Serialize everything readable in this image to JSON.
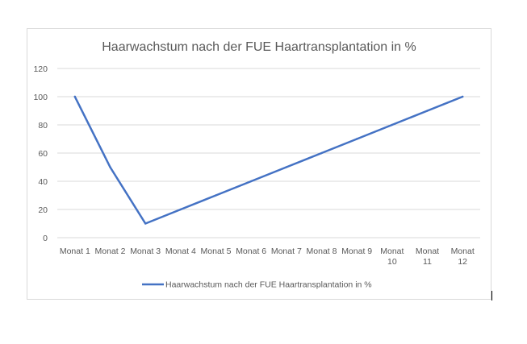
{
  "chart_data": {
    "type": "line",
    "title": "Haarwachstum nach der FUE Haartransplantation in %",
    "xlabel": "",
    "ylabel": "",
    "categories": [
      "Monat 1",
      "Monat 2",
      "Monat 3",
      "Monat 4",
      "Monat 5",
      "Monat 6",
      "Monat 7",
      "Monat 8",
      "Monat 9",
      "Monat 10",
      "Monat 11",
      "Monat 12"
    ],
    "series": [
      {
        "name": "Haarwachstum nach der FUE Haartransplantation in %",
        "values": [
          100,
          50,
          10,
          20,
          30,
          40,
          50,
          60,
          70,
          80,
          90,
          100
        ],
        "color": "#4472c4"
      }
    ],
    "ylim": [
      0,
      120
    ],
    "yticks": [
      0,
      20,
      40,
      60,
      80,
      100,
      120
    ],
    "grid": true,
    "legend_position": "bottom"
  }
}
